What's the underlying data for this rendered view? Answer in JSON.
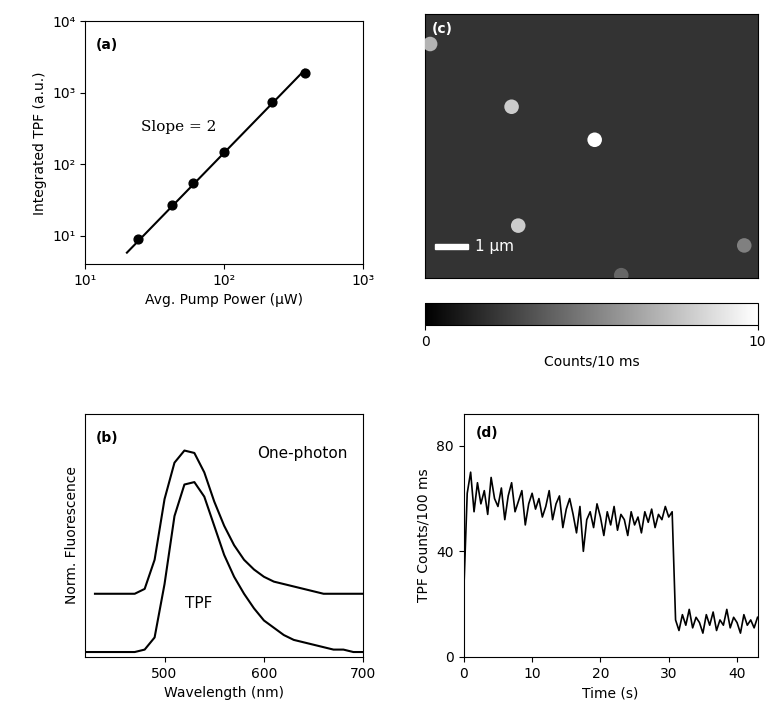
{
  "chart_data": [
    {
      "type": "scatter",
      "panel": "(a)",
      "annotation": "Slope = 2",
      "x_label": "Avg. Pump Power (μW)",
      "y_label": "Integrated TPF (a.u.)",
      "log": true,
      "xlim": [
        10,
        1000
      ],
      "xticks": [
        {
          "value": 10,
          "label": "10¹"
        },
        {
          "value": 100,
          "label": "10²"
        },
        {
          "value": 1000,
          "label": "10³"
        }
      ],
      "ylim": [
        4,
        10000
      ],
      "yticks": [
        {
          "value": 10,
          "label": "10¹"
        },
        {
          "value": 100,
          "label": "10²"
        },
        {
          "value": 1000,
          "label": "10³"
        },
        {
          "value": 10000,
          "label": "10⁴"
        }
      ],
      "series": [
        {
          "type": "scatter",
          "color": "#000000",
          "marker": "o",
          "x": [
            24,
            42,
            60,
            100,
            220,
            380
          ],
          "values": [
            9,
            27,
            55,
            150,
            750,
            1900
          ]
        },
        {
          "type": "line",
          "color": "#000000",
          "line_style": "solid",
          "x": [
            20,
            380
          ],
          "values": [
            5.8,
            2100
          ]
        }
      ]
    },
    {
      "type": "image",
      "panel": "(c)",
      "xlim": [
        0,
        10
      ],
      "ylim": [
        0,
        8
      ],
      "tick_labels": false,
      "background": 2,
      "spots": {
        "x": [
          0.15,
          2.6,
          5.1,
          2.8,
          9.6,
          5.9
        ],
        "y": [
          7.1,
          5.2,
          4.2,
          1.6,
          1.0,
          0.1
        ],
        "values": [
          7,
          8,
          10,
          8,
          5,
          4
        ]
      },
      "colorbar": {
        "range": [
          0,
          10
        ],
        "ticks": [
          0,
          10
        ],
        "label": "Counts/10 ms"
      },
      "scale_bar": {
        "length": 1,
        "label": "1 μm"
      }
    },
    {
      "type": "line",
      "panel": "(b)",
      "x_label": "Wavelength (nm)",
      "y_label": "Norm. Fluorescence",
      "tick_labels": "x",
      "xlim": [
        420,
        700
      ],
      "xticks": [
        500,
        600,
        700
      ],
      "ylim": [
        0,
        1
      ],
      "x": [
        420,
        430,
        440,
        450,
        460,
        470,
        480,
        490,
        500,
        510,
        520,
        530,
        540,
        550,
        560,
        570,
        580,
        590,
        600,
        610,
        620,
        630,
        640,
        650,
        660,
        670,
        680,
        690,
        700
      ],
      "series": [
        {
          "name": "One-photon",
          "color": "#000000",
          "values": [
            null,
            0.26,
            0.26,
            0.26,
            0.26,
            0.26,
            0.28,
            0.4,
            0.65,
            0.8,
            0.85,
            0.84,
            0.76,
            0.64,
            0.54,
            0.46,
            0.4,
            0.36,
            0.33,
            0.31,
            0.3,
            0.29,
            0.28,
            0.27,
            0.26,
            0.26,
            0.26,
            0.26,
            0.26
          ]
        },
        {
          "name": "TPF",
          "color": "#000000",
          "values": [
            0.02,
            0.02,
            0.02,
            0.02,
            0.02,
            0.02,
            0.03,
            0.08,
            0.3,
            0.58,
            0.71,
            0.72,
            0.66,
            0.54,
            0.42,
            0.33,
            0.26,
            0.2,
            0.15,
            0.12,
            0.09,
            0.07,
            0.06,
            0.05,
            0.04,
            0.03,
            0.03,
            0.02,
            0.02
          ]
        }
      ]
    },
    {
      "type": "line",
      "panel": "(d)",
      "x_label": "Time (s)",
      "y_label": "TPF Counts/100 ms",
      "xlim": [
        0,
        43
      ],
      "xticks": [
        0,
        10,
        20,
        30,
        40
      ],
      "ylim": [
        0,
        92
      ],
      "yticks": [
        0,
        40,
        80
      ],
      "x": [
        0,
        0.5,
        1,
        1.5,
        2,
        2.5,
        3,
        3.5,
        4,
        4.5,
        5,
        5.5,
        6,
        6.5,
        7,
        7.5,
        8,
        8.5,
        9,
        9.5,
        10,
        10.5,
        11,
        11.5,
        12,
        12.5,
        13,
        13.5,
        14,
        14.5,
        15,
        15.5,
        16,
        16.5,
        17,
        17.5,
        18,
        18.5,
        19,
        19.5,
        20,
        20.5,
        21,
        21.5,
        22,
        22.5,
        23,
        23.5,
        24,
        24.5,
        25,
        25.5,
        26,
        26.5,
        27,
        27.5,
        28,
        28.5,
        29,
        29.5,
        30,
        30.5,
        31,
        31.5,
        32,
        32.5,
        33,
        33.5,
        34,
        34.5,
        35,
        35.5,
        36,
        36.5,
        37,
        37.5,
        38,
        38.5,
        39,
        39.5,
        40,
        40.5,
        41,
        41.5,
        42,
        42.5,
        43
      ],
      "series": [
        {
          "color": "#000000",
          "values": [
            25,
            62,
            70,
            55,
            66,
            58,
            63,
            54,
            68,
            60,
            57,
            64,
            52,
            61,
            66,
            55,
            59,
            63,
            50,
            58,
            62,
            56,
            60,
            53,
            57,
            63,
            52,
            58,
            61,
            49,
            56,
            60,
            54,
            47,
            57,
            40,
            52,
            55,
            49,
            58,
            53,
            46,
            55,
            50,
            57,
            48,
            54,
            52,
            46,
            55,
            50,
            53,
            47,
            55,
            51,
            56,
            49,
            54,
            52,
            57,
            53,
            55,
            14,
            10,
            16,
            12,
            18,
            11,
            15,
            13,
            9,
            16,
            12,
            17,
            10,
            14,
            12,
            18,
            11,
            15,
            13,
            9,
            16,
            12,
            14,
            11,
            15
          ]
        }
      ]
    }
  ]
}
